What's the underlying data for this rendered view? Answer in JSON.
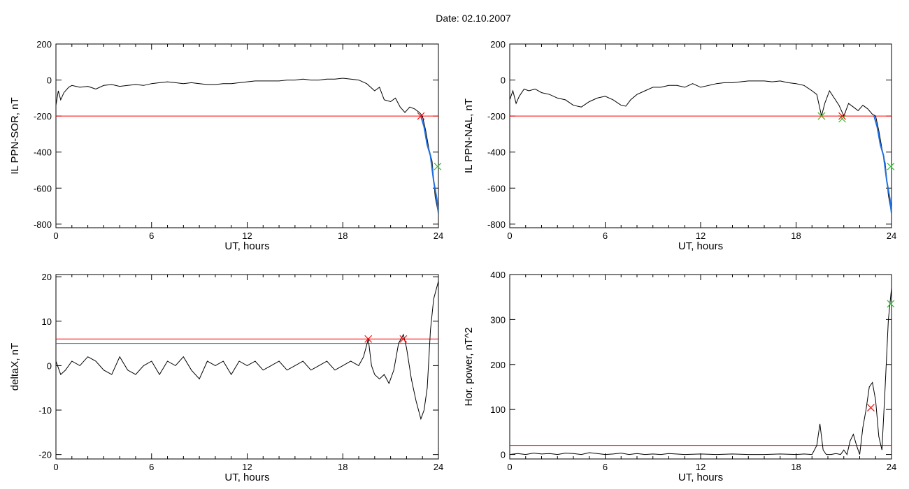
{
  "figure": {
    "title": "Date:  02.10.2007"
  },
  "colors": {
    "line": "#000000",
    "threshold_red": "#ff0000",
    "threshold_blue": "#1f6fe0",
    "segment_blue": "#1f6fe0",
    "marker_red": "#ff0000",
    "marker_green": "#33bb33",
    "marker_orange": "#ff8800"
  },
  "chart_data": [
    {
      "type": "line",
      "ylabel": "IL PPN-SOR, nT",
      "xlabel": "UT, hours",
      "xlim": [
        0,
        24
      ],
      "ylim": [
        -820,
        200
      ],
      "xticks": [
        0,
        6,
        12,
        18,
        24
      ],
      "yticks": [
        200,
        0,
        -200,
        -400,
        -600,
        -800
      ],
      "grid": false,
      "series": [
        {
          "x": [
            0,
            0.15,
            0.3,
            0.5,
            0.8,
            1.0,
            1.5,
            2.0,
            2.5,
            3.0,
            3.5,
            4.0,
            4.5,
            5.0,
            5.5,
            6.0,
            6.5,
            7.0,
            7.5,
            8.0,
            8.5,
            9.0,
            9.5,
            10.0,
            10.5,
            11.0,
            11.5,
            12.0,
            12.5,
            13.0,
            13.5,
            14.0,
            14.5,
            15.0,
            15.5,
            16.0,
            16.5,
            17.0,
            17.5,
            18.0,
            18.5,
            19.0,
            19.5,
            20.0,
            20.3,
            20.6,
            21.0,
            21.3,
            21.6,
            21.9,
            22.2,
            22.5,
            22.8,
            23.0,
            23.2,
            23.4,
            23.6,
            23.8,
            24.0
          ],
          "y": [
            -140,
            -60,
            -110,
            -70,
            -40,
            -30,
            -40,
            -35,
            -50,
            -30,
            -25,
            -35,
            -30,
            -25,
            -30,
            -20,
            -15,
            -10,
            -15,
            -20,
            -15,
            -20,
            -25,
            -25,
            -20,
            -20,
            -15,
            -10,
            -5,
            -5,
            -5,
            -5,
            0,
            0,
            5,
            0,
            0,
            5,
            5,
            10,
            5,
            0,
            -20,
            -60,
            -40,
            -110,
            -120,
            -100,
            -150,
            -180,
            -150,
            -160,
            -180,
            -200,
            -280,
            -380,
            -450,
            -650,
            -740
          ]
        }
      ],
      "threshold_lines": [
        -200
      ],
      "highlight_segment": {
        "x": [
          22.9,
          23.1,
          23.3,
          23.5,
          23.7,
          23.9,
          24.0
        ],
        "y": [
          -200,
          -260,
          -360,
          -420,
          -560,
          -660,
          -740
        ]
      },
      "markers": [
        {
          "x": 22.9,
          "y": -200,
          "color": "red",
          "symbol": "x"
        },
        {
          "x": 23.95,
          "y": -480,
          "color": "green",
          "symbol": "x"
        }
      ]
    },
    {
      "type": "line",
      "ylabel": "IL PPN-NAL, nT",
      "xlabel": "UT, hours",
      "xlim": [
        0,
        24
      ],
      "ylim": [
        -820,
        200
      ],
      "xticks": [
        0,
        6,
        12,
        18,
        24
      ],
      "yticks": [
        200,
        0,
        -200,
        -400,
        -600,
        -800
      ],
      "grid": false,
      "series": [
        {
          "x": [
            0,
            0.2,
            0.4,
            0.6,
            0.9,
            1.2,
            1.6,
            2.0,
            2.5,
            3.0,
            3.5,
            4.0,
            4.5,
            5.0,
            5.5,
            6.0,
            6.5,
            7.0,
            7.3,
            7.6,
            8.0,
            8.5,
            9.0,
            9.5,
            10.0,
            10.5,
            11.0,
            11.5,
            12.0,
            12.5,
            13.0,
            13.5,
            14.0,
            14.5,
            15.0,
            15.5,
            16.0,
            16.5,
            17.0,
            17.5,
            18.0,
            18.5,
            19.0,
            19.3,
            19.6,
            19.8,
            20.1,
            20.4,
            20.7,
            21.0,
            21.3,
            21.6,
            21.9,
            22.2,
            22.5,
            22.8,
            23.0,
            23.2,
            23.4,
            23.6,
            23.8,
            24.0
          ],
          "y": [
            -110,
            -60,
            -130,
            -90,
            -50,
            -60,
            -50,
            -70,
            -80,
            -100,
            -110,
            -140,
            -150,
            -120,
            -100,
            -90,
            -110,
            -140,
            -145,
            -110,
            -80,
            -60,
            -40,
            -40,
            -30,
            -30,
            -40,
            -20,
            -40,
            -30,
            -20,
            -15,
            -15,
            -10,
            -5,
            -5,
            -5,
            -10,
            -5,
            -15,
            -20,
            -30,
            -60,
            -80,
            -200,
            -130,
            -60,
            -100,
            -140,
            -200,
            -130,
            -150,
            -170,
            -140,
            -160,
            -190,
            -200,
            -280,
            -380,
            -460,
            -640,
            -740
          ]
        }
      ],
      "threshold_lines": [
        -200
      ],
      "highlight_segment": {
        "x": [
          22.9,
          23.1,
          23.3,
          23.5,
          23.7,
          23.9,
          24.0
        ],
        "y": [
          -200,
          -260,
          -360,
          -420,
          -560,
          -660,
          -740
        ]
      },
      "markers": [
        {
          "x": 19.6,
          "y": -200,
          "color": "orange",
          "symbol": "x"
        },
        {
          "x": 19.6,
          "y": -200,
          "color": "green",
          "symbol": "x"
        },
        {
          "x": 20.9,
          "y": -200,
          "color": "red",
          "symbol": "x"
        },
        {
          "x": 20.9,
          "y": -215,
          "color": "green",
          "symbol": "x"
        },
        {
          "x": 23.95,
          "y": -480,
          "color": "green",
          "symbol": "x"
        }
      ]
    },
    {
      "type": "line",
      "ylabel": "deltaX, nT",
      "xlabel": "UT, hours",
      "xlim": [
        0,
        24
      ],
      "ylim": [
        -21,
        20.5
      ],
      "xticks": [
        0,
        6,
        12,
        18,
        24
      ],
      "yticks": [
        20,
        10,
        0,
        -10,
        -20
      ],
      "grid": false,
      "series": [
        {
          "x": [
            0,
            0.3,
            0.6,
            1.0,
            1.5,
            2.0,
            2.5,
            3.0,
            3.5,
            4.0,
            4.5,
            5.0,
            5.5,
            6.0,
            6.5,
            7.0,
            7.5,
            8.0,
            8.5,
            9.0,
            9.5,
            10.0,
            10.5,
            11.0,
            11.5,
            12.0,
            12.5,
            13.0,
            13.5,
            14.0,
            14.5,
            15.0,
            15.5,
            16.0,
            16.5,
            17.0,
            17.5,
            18.0,
            18.5,
            19.0,
            19.3,
            19.6,
            19.8,
            20.0,
            20.3,
            20.6,
            20.9,
            21.2,
            21.5,
            21.8,
            22.0,
            22.3,
            22.6,
            22.9,
            23.1,
            23.3,
            23.5,
            23.7,
            24.0
          ],
          "y": [
            1,
            -2,
            -1,
            1,
            0,
            2,
            1,
            -1,
            -2,
            2,
            -1,
            -2,
            0,
            1,
            -2,
            1,
            0,
            2,
            -1,
            -3,
            1,
            0,
            1,
            -2,
            1,
            0,
            1,
            -1,
            0,
            1,
            -1,
            0,
            1,
            -1,
            0,
            1,
            -1,
            0,
            1,
            0,
            2,
            6,
            0,
            -2,
            -3,
            -2,
            -4,
            -1,
            5,
            7,
            4,
            -3,
            -8,
            -12,
            -10,
            -5,
            8,
            15,
            19
          ]
        }
      ],
      "threshold_lines": [
        6,
        5
      ],
      "markers": [
        {
          "x": 19.6,
          "y": 6,
          "color": "red",
          "symbol": "x"
        },
        {
          "x": 21.8,
          "y": 6,
          "color": "red",
          "symbol": "x"
        }
      ]
    },
    {
      "type": "line",
      "ylabel": "Hor. power, nT^2",
      "xlabel": "UT, hours",
      "xlim": [
        0,
        24
      ],
      "ylim": [
        -10,
        400
      ],
      "xticks": [
        0,
        6,
        12,
        18,
        24
      ],
      "yticks": [
        400,
        300,
        200,
        100,
        0
      ],
      "grid": false,
      "series": [
        {
          "x": [
            0,
            0.5,
            1.0,
            1.5,
            2.0,
            2.5,
            3.0,
            3.5,
            4.0,
            4.5,
            5.0,
            5.5,
            6.0,
            6.5,
            7.0,
            7.5,
            8.0,
            8.5,
            9.0,
            9.5,
            10.0,
            11.0,
            12.0,
            13.0,
            14.0,
            15.0,
            16.0,
            17.0,
            18.0,
            18.5,
            19.0,
            19.3,
            19.5,
            19.7,
            19.9,
            20.2,
            20.5,
            20.8,
            21.0,
            21.2,
            21.4,
            21.6,
            21.8,
            22.0,
            22.2,
            22.4,
            22.6,
            22.8,
            23.0,
            23.2,
            23.4,
            23.6,
            23.8,
            24.0
          ],
          "y": [
            0,
            2,
            0,
            3,
            1,
            2,
            0,
            3,
            2,
            0,
            4,
            2,
            0,
            1,
            3,
            0,
            2,
            0,
            1,
            0,
            2,
            0,
            1,
            0,
            1,
            0,
            0,
            1,
            0,
            1,
            0,
            20,
            68,
            10,
            0,
            0,
            2,
            0,
            10,
            0,
            30,
            45,
            20,
            0,
            60,
            100,
            150,
            160,
            120,
            40,
            10,
            150,
            300,
            370
          ]
        }
      ],
      "threshold_lines": [
        20
      ],
      "markers": [
        {
          "x": 22.7,
          "y": 104,
          "color": "red",
          "symbol": "x"
        },
        {
          "x": 23.95,
          "y": 335,
          "color": "green",
          "symbol": "x"
        }
      ]
    }
  ]
}
